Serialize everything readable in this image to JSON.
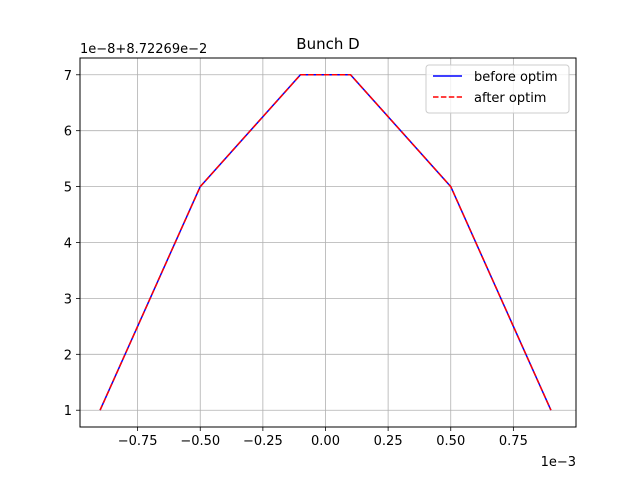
{
  "chart_data": {
    "type": "line",
    "title": "Bunch D",
    "xlabel": "",
    "ylabel": "",
    "x_offset_text": "1e−3",
    "y_offset_text": "1e−8+8.72269e−2",
    "xlim": [
      -0.98,
      1.0
    ],
    "ylim": [
      0.7,
      7.3
    ],
    "x_ticks": [
      -0.75,
      -0.5,
      -0.25,
      0.0,
      0.25,
      0.5,
      0.75
    ],
    "x_tick_labels": [
      "−0.75",
      "−0.50",
      "−0.25",
      "0.00",
      "0.25",
      "0.50",
      "0.75"
    ],
    "y_ticks": [
      1,
      2,
      3,
      4,
      5,
      6,
      7
    ],
    "y_tick_labels": [
      "1",
      "2",
      "3",
      "4",
      "5",
      "6",
      "7"
    ],
    "grid": true,
    "legend_position": "top-right",
    "series": [
      {
        "name": "before optim",
        "color": "#0000ff",
        "style": "solid",
        "x": [
          -0.9,
          -0.5,
          -0.1,
          0.1,
          0.5,
          0.9
        ],
        "y": [
          1,
          5,
          7,
          7,
          5,
          1
        ]
      },
      {
        "name": "after optim",
        "color": "#ff0000",
        "style": "dashed",
        "x": [
          -0.9,
          -0.5,
          -0.1,
          0.1,
          0.5,
          0.9
        ],
        "y": [
          1,
          5,
          7,
          7,
          5,
          1
        ]
      }
    ]
  }
}
